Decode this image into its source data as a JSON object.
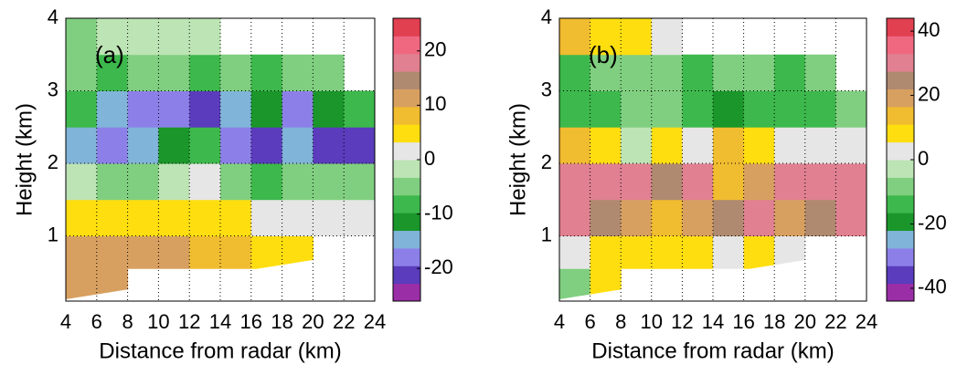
{
  "chart_data": [
    {
      "type": "heatmap",
      "label": "(a)",
      "xlabel": "Distance from radar (km)",
      "ylabel": "Height (km)",
      "xlim": [
        4,
        24
      ],
      "ylim": [
        0.1,
        4
      ],
      "xticks": [
        4,
        6,
        8,
        10,
        12,
        14,
        16,
        18,
        20,
        22,
        24
      ],
      "yticks": [
        1,
        2,
        3,
        4
      ],
      "grid": true,
      "x": [
        5,
        7,
        9,
        11,
        13,
        15,
        17,
        19,
        21,
        23
      ],
      "y": [
        0.35,
        0.75,
        1.25,
        1.75,
        2.25,
        2.75,
        3.25,
        3.75
      ],
      "z": [
        [
          12,
          12,
          null,
          null,
          null,
          null,
          null,
          null,
          null,
          null
        ],
        [
          10,
          10,
          12,
          10,
          8,
          8,
          6,
          6,
          null,
          null
        ],
        [
          6,
          6,
          4,
          4,
          4,
          4,
          2,
          2,
          0,
          0
        ],
        [
          -2,
          -4,
          -4,
          -2,
          0,
          -6,
          -8,
          -4,
          -4,
          -6
        ],
        [
          -16,
          -18,
          -16,
          -12,
          -8,
          -18,
          -22,
          -14,
          -22,
          -20
        ],
        [
          -8,
          -14,
          -18,
          -18,
          -20,
          -14,
          -10,
          -18,
          -10,
          -8
        ],
        [
          -6,
          -8,
          -6,
          -6,
          -8,
          -6,
          -8,
          -6,
          -4,
          null
        ],
        [
          -4,
          -2,
          -2,
          -2,
          -2,
          null,
          null,
          null,
          null,
          null
        ]
      ],
      "clim": [
        -26,
        26
      ],
      "cticks": [
        -20,
        -10,
        0,
        10,
        20
      ],
      "colors": [
        "#9a2ea6",
        "#5a3cbc",
        "#8c80e8",
        "#80b4d8",
        "#1a962a",
        "#3db84c",
        "#80cf80",
        "#bde4b4",
        "#e6e6e6",
        "#ffde10",
        "#f0bc30",
        "#d8a060",
        "#b08a70",
        "#e08090",
        "#f06880",
        "#e04050"
      ]
    },
    {
      "type": "heatmap",
      "label": "(b)",
      "xlabel": "Distance from radar (km)",
      "ylabel": "Height (km)",
      "xlim": [
        4,
        24
      ],
      "ylim": [
        0.1,
        4
      ],
      "xticks": [
        4,
        6,
        8,
        10,
        12,
        14,
        16,
        18,
        20,
        22,
        24
      ],
      "yticks": [
        1,
        2,
        3,
        4
      ],
      "grid": true,
      "x": [
        5,
        7,
        9,
        11,
        13,
        15,
        17,
        19,
        21,
        23
      ],
      "y": [
        0.35,
        0.75,
        1.25,
        1.75,
        2.25,
        2.75,
        3.25,
        3.75
      ],
      "z": [
        [
          -6,
          8,
          null,
          null,
          null,
          null,
          null,
          null,
          null,
          null
        ],
        [
          4,
          8,
          10,
          6,
          8,
          4,
          6,
          2,
          null,
          null
        ],
        [
          28,
          24,
          20,
          16,
          20,
          24,
          28,
          20,
          24,
          28
        ],
        [
          30,
          32,
          28,
          26,
          30,
          12,
          20,
          28,
          30,
          30
        ],
        [
          14,
          10,
          -2,
          6,
          4,
          16,
          8,
          4,
          2,
          0
        ],
        [
          -16,
          -12,
          -8,
          -10,
          -14,
          -18,
          -14,
          -16,
          -12,
          -10
        ],
        [
          -12,
          -10,
          -8,
          -10,
          -12,
          -8,
          -10,
          -14,
          -10,
          null
        ],
        [
          14,
          10,
          8,
          4,
          null,
          null,
          null,
          null,
          null,
          null
        ]
      ],
      "clim": [
        -44,
        44
      ],
      "cticks": [
        -40,
        -20,
        0,
        20,
        40
      ],
      "colors": [
        "#9a2ea6",
        "#5a3cbc",
        "#8c80e8",
        "#80b4d8",
        "#1a962a",
        "#3db84c",
        "#80cf80",
        "#bde4b4",
        "#e6e6e6",
        "#ffde10",
        "#f0bc30",
        "#d8a060",
        "#b08a70",
        "#e08090",
        "#f06880",
        "#e04050"
      ]
    }
  ]
}
